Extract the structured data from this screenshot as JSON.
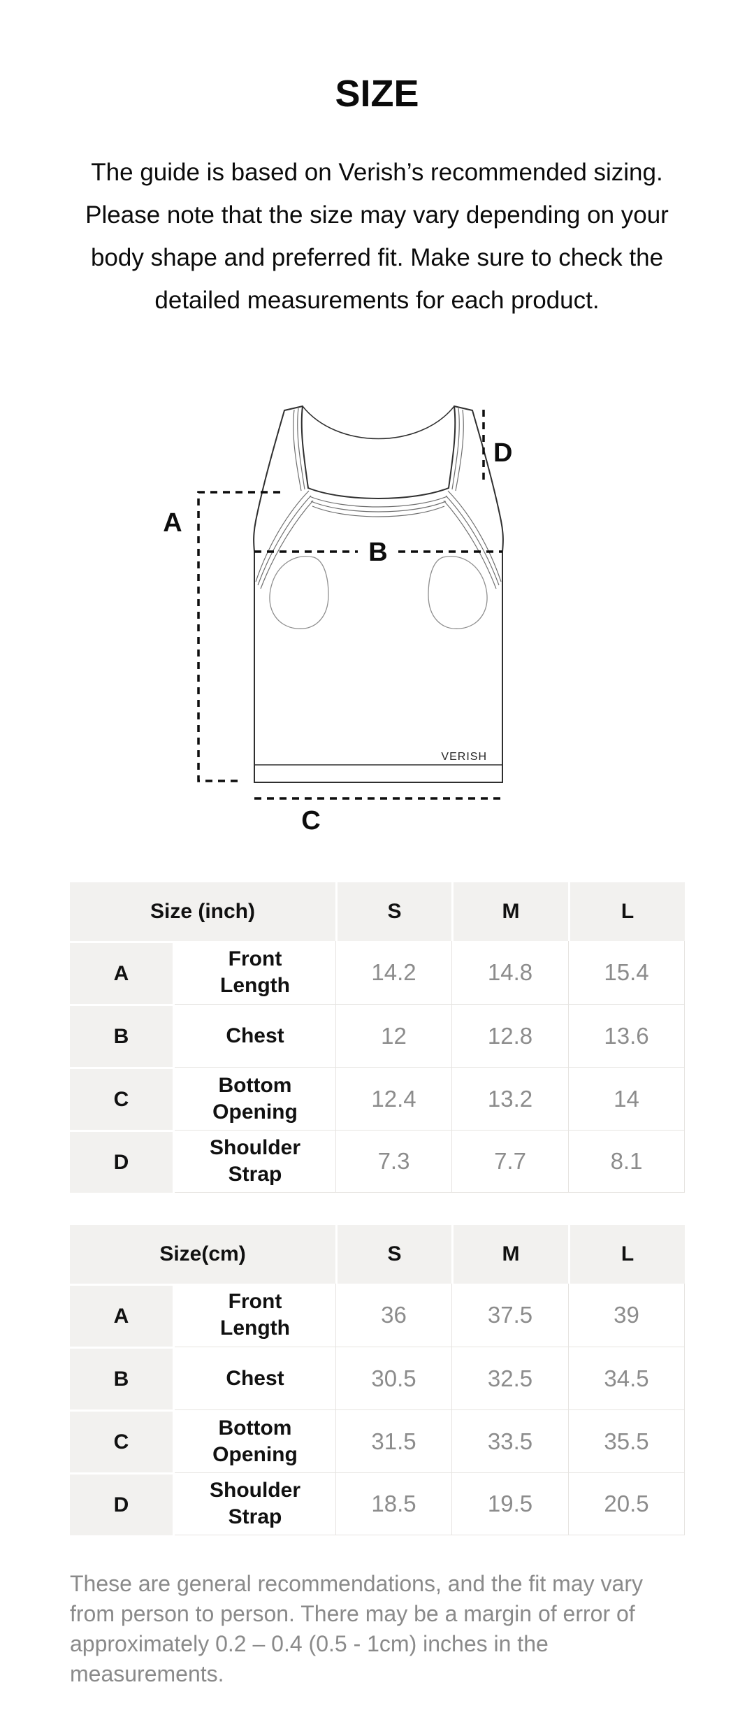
{
  "title": "SIZE",
  "intro": {
    "lines": [
      "The guide is based on Verish’s recommended sizing.",
      "Please note that the size may vary depending on your",
      "body shape and preferred fit. Make sure to check the",
      "detailed measurements for each product."
    ]
  },
  "diagram": {
    "brand": "VERISH",
    "measure_labels": {
      "a": "A",
      "b": "B",
      "c": "C",
      "d": "D"
    }
  },
  "tables": [
    {
      "unit_label": "Size (inch)",
      "size_headers": [
        "S",
        "M",
        "L"
      ],
      "rows": [
        {
          "letter": "A",
          "name": "Front\nLength",
          "values": [
            "14.2",
            "14.8",
            "15.4"
          ]
        },
        {
          "letter": "B",
          "name": "Chest",
          "values": [
            "12",
            "12.8",
            "13.6"
          ]
        },
        {
          "letter": "C",
          "name": "Bottom\nOpening",
          "values": [
            "12.4",
            "13.2",
            "14"
          ]
        },
        {
          "letter": "D",
          "name": "Shoulder\nStrap",
          "values": [
            "7.3",
            "7.7",
            "8.1"
          ]
        }
      ]
    },
    {
      "unit_label": "Size(cm)",
      "size_headers": [
        "S",
        "M",
        "L"
      ],
      "rows": [
        {
          "letter": "A",
          "name": "Front\nLength",
          "values": [
            "36",
            "37.5",
            "39"
          ]
        },
        {
          "letter": "B",
          "name": "Chest",
          "values": [
            "30.5",
            "32.5",
            "34.5"
          ]
        },
        {
          "letter": "C",
          "name": "Bottom\nOpening",
          "values": [
            "31.5",
            "33.5",
            "35.5"
          ]
        },
        {
          "letter": "D",
          "name": "Shoulder\nStrap",
          "values": [
            "18.5",
            "19.5",
            "20.5"
          ]
        }
      ]
    }
  ],
  "footer": {
    "lines": [
      "These are general recommendations, and the fit may vary",
      "from person to person. There may be a margin of error of",
      "approximately 0.2 – 0.4 (0.5 - 1cm) inches in the measurements."
    ]
  },
  "colors": {
    "header_bg": "#f2f1ef",
    "grid_line": "#e6e4e1",
    "value_text": "#8c8c8c",
    "footer_text": "#8a8a8a",
    "ink": "#111111"
  }
}
